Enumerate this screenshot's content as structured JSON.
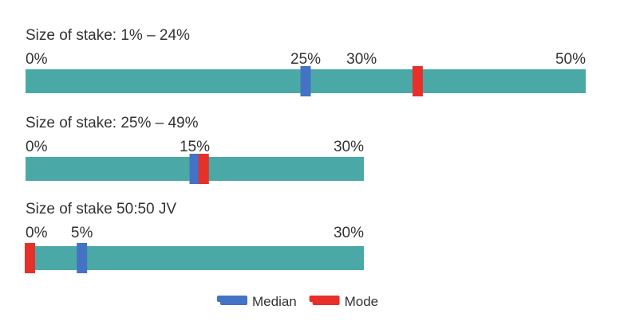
{
  "chart_data": {
    "type": "bar",
    "colors": {
      "bar": "#4aa9a6",
      "median": "#4472c4",
      "mode": "#e8302a"
    },
    "rows": [
      {
        "title": "Size of stake: 1% – 24%",
        "range": [
          0,
          50
        ],
        "tick_labels": [
          {
            "label": "0%",
            "value": 0
          },
          {
            "label": "25%",
            "value": 25
          },
          {
            "label": "30%",
            "value": 30
          },
          {
            "label": "50%",
            "value": 50
          }
        ],
        "median": 25,
        "mode": 35
      },
      {
        "title": "Size of stake: 25% – 49%",
        "range": [
          0,
          30
        ],
        "tick_labels": [
          {
            "label": "0%",
            "value": 0
          },
          {
            "label": "15%",
            "value": 15
          },
          {
            "label": "30%",
            "value": 30
          }
        ],
        "median": 15,
        "mode": 15.8
      },
      {
        "title": "Size of stake 50:50 JV",
        "range": [
          0,
          30
        ],
        "tick_labels": [
          {
            "label": "0%",
            "value": 0
          },
          {
            "label": "5%",
            "value": 5
          },
          {
            "label": "30%",
            "value": 30
          }
        ],
        "median": 5,
        "mode": 0
      }
    ],
    "legend": [
      {
        "name": "Median",
        "marker": "median"
      },
      {
        "name": "Mode",
        "marker": "mode"
      }
    ],
    "legend_position": "bottom"
  }
}
